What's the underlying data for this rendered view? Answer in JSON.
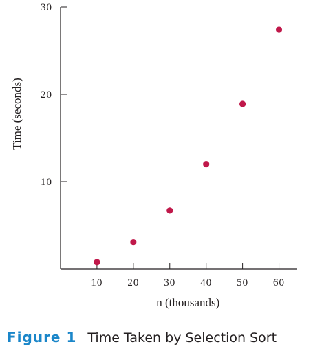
{
  "figure": {
    "label": "Figure 1",
    "title": "Time Taken by Selection Sort"
  },
  "chart_data": {
    "type": "scatter",
    "title": "Time Taken by Selection Sort",
    "xlabel": "n (thousands)",
    "ylabel": "Time (seconds)",
    "x_ticks": [
      10,
      20,
      30,
      40,
      50,
      60
    ],
    "y_ticks": [
      10,
      20,
      30
    ],
    "xlim": [
      0,
      65
    ],
    "ylim": [
      0,
      30
    ],
    "grid": false,
    "point_color": "#c0184a",
    "series": [
      {
        "x": [
          10,
          20,
          30,
          40,
          50,
          60
        ],
        "y": [
          0.8,
          3.1,
          6.7,
          12.0,
          18.9,
          27.4
        ]
      }
    ]
  }
}
